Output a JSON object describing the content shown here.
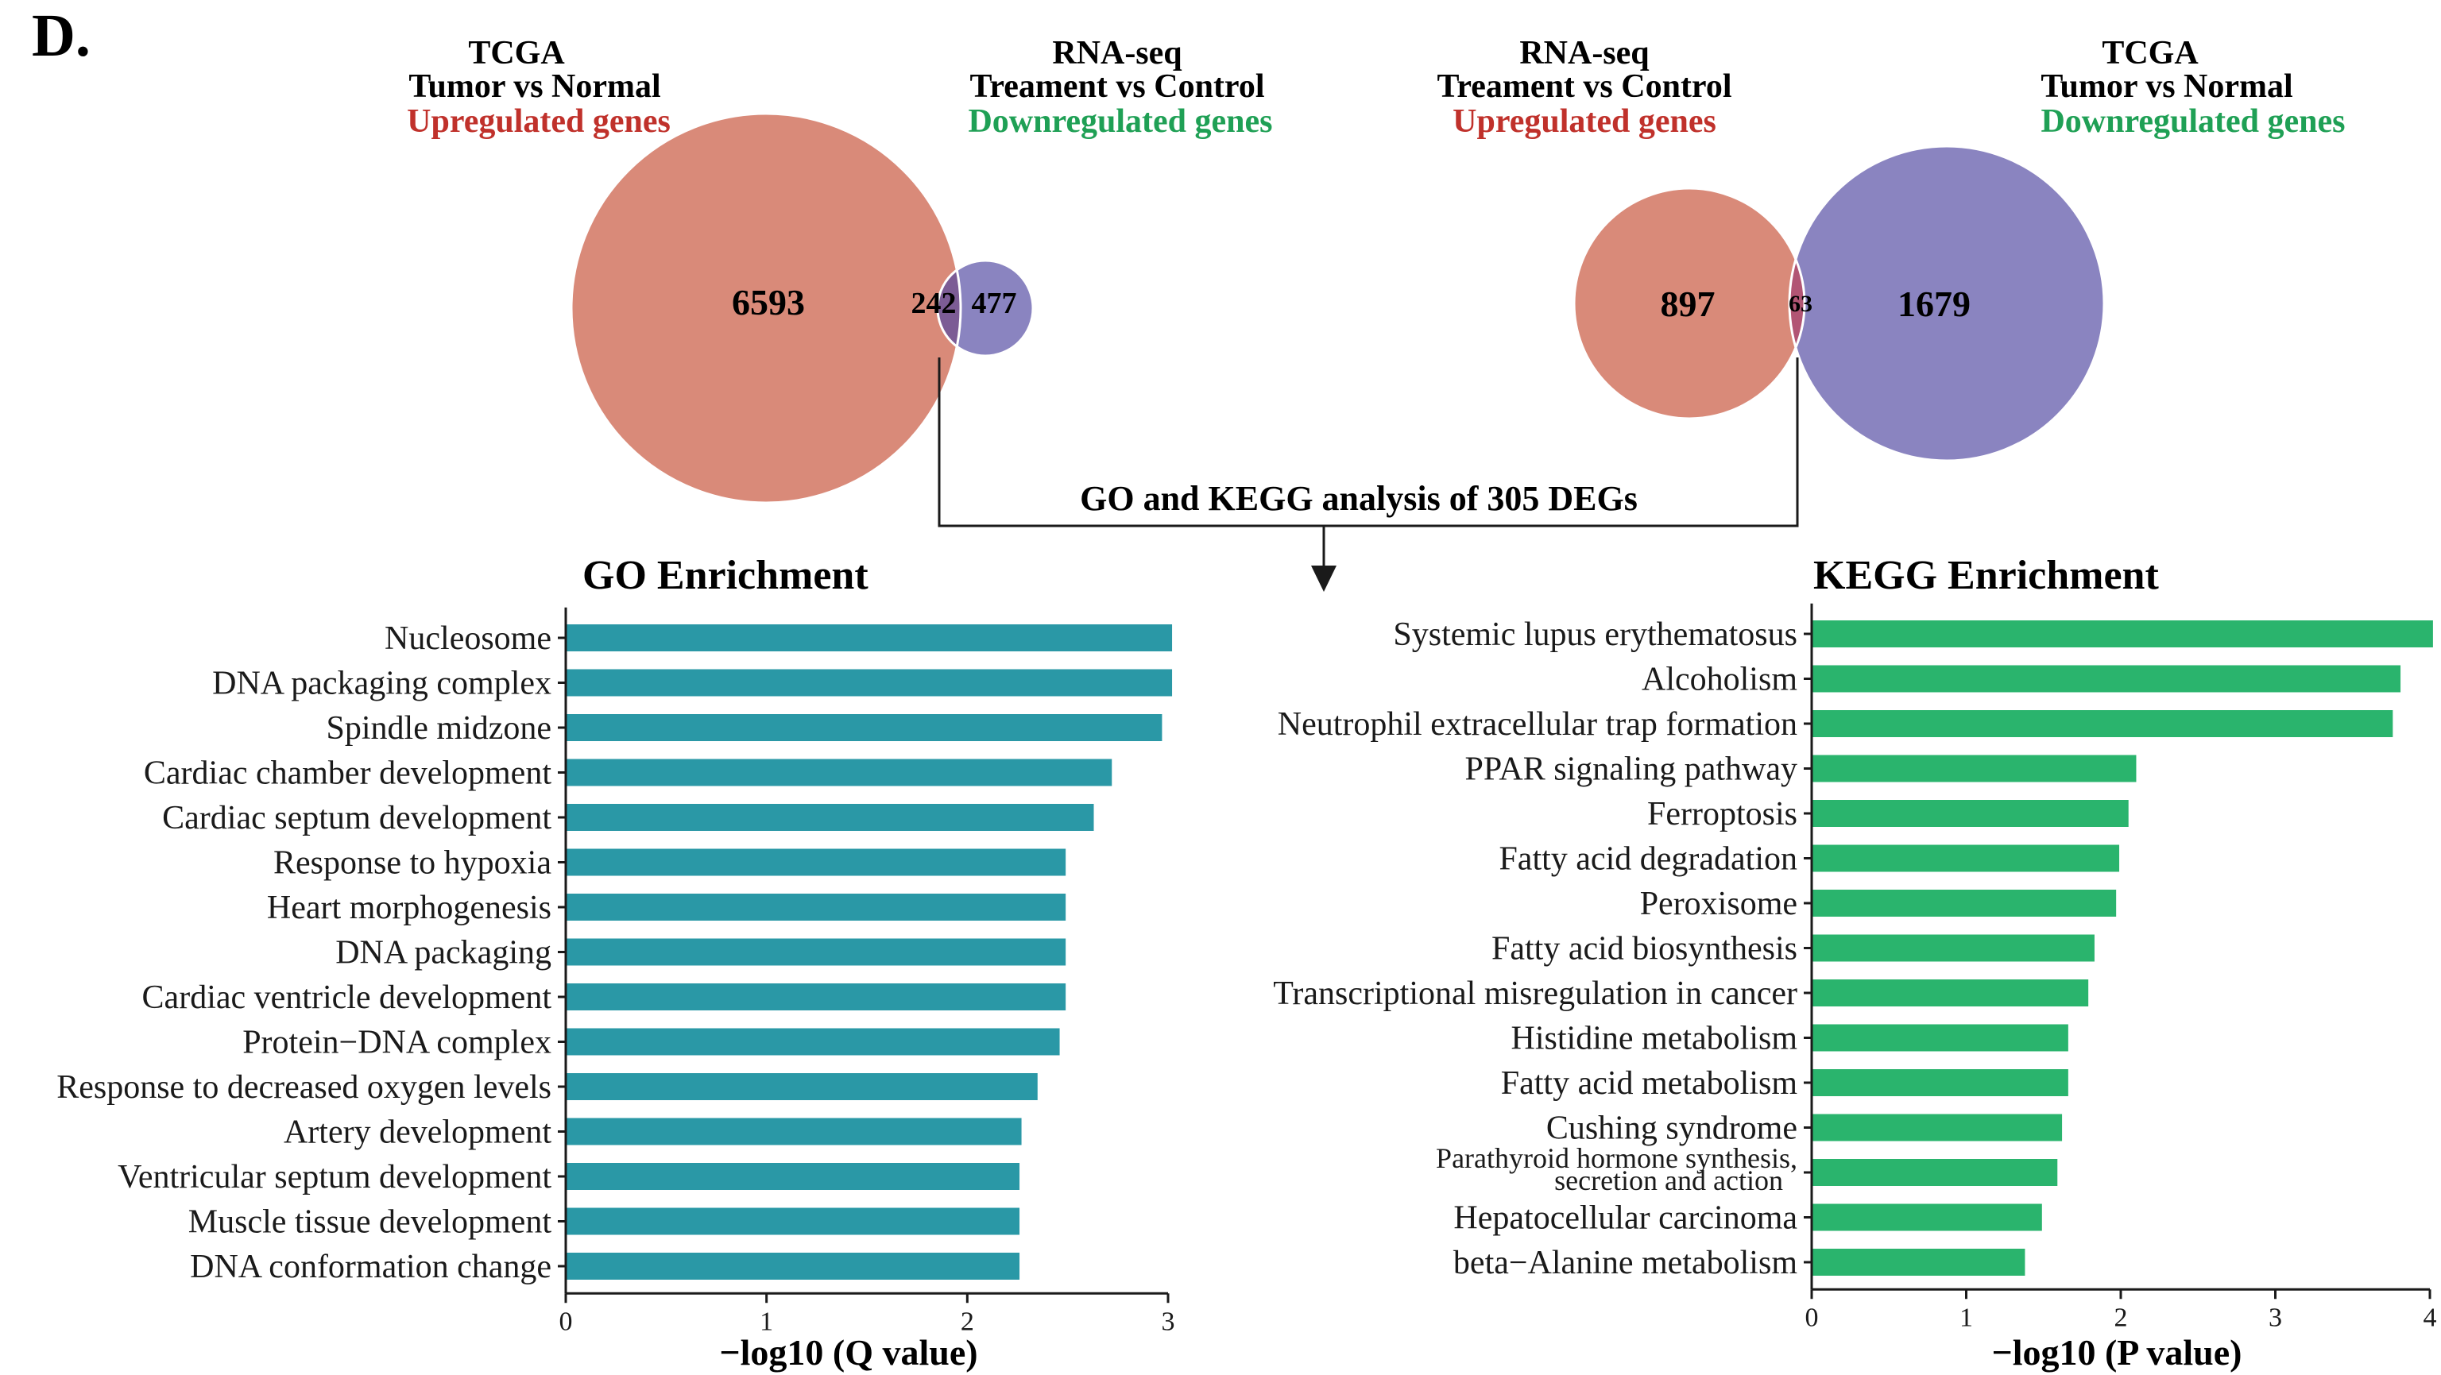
{
  "panel_label": "D.",
  "colors": {
    "up_red": "#c0312b",
    "down_green": "#1fa055",
    "venn_red": "#d98a79",
    "venn_purple": "#8a84c0",
    "venn_overlap_left": "#7c5c95",
    "venn_overlap_right": "#b25574",
    "go_bar": "#2a98a6",
    "kegg_bar": "#2ab46d",
    "text": "#1a1a1a"
  },
  "venn_left": {
    "set_a": {
      "line1": "TCGA",
      "line2": "Tumor vs Normal",
      "line3": "Upregulated genes"
    },
    "set_b": {
      "line1": "RNA-seq",
      "line2": "Treament vs Control",
      "line3": "Downregulated genes"
    },
    "only_a": "6593",
    "overlap": "242",
    "only_b": "477"
  },
  "venn_right": {
    "set_a": {
      "line1": "RNA-seq",
      "line2": "Treament vs Control",
      "line3": "Upregulated genes"
    },
    "set_b": {
      "line1": "TCGA",
      "line2": "Tumor vs Normal",
      "line3": "Downregulated genes"
    },
    "only_a": "897",
    "overlap": "63",
    "only_b": "1679"
  },
  "connector_label": "GO and KEGG analysis of 305 DEGs",
  "chart_data": [
    {
      "type": "bar",
      "orientation": "horizontal",
      "title": "GO Enrichment",
      "xlabel": "−log10 (Q value)",
      "ylabel": "",
      "xlim": [
        0,
        3
      ],
      "xticks": [
        "0",
        "1",
        "2",
        "3"
      ],
      "categories": [
        "Nucleosome",
        "DNA packaging complex",
        "Spindle midzone",
        "Cardiac chamber development",
        "Cardiac septum development",
        "Response to hypoxia",
        "Heart morphogenesis",
        "DNA packaging",
        "Cardiac ventricle development",
        "Protein−DNA complex",
        "Response to decreased oxygen levels",
        "Artery development",
        "Ventricular septum development",
        "Muscle tissue development",
        "DNA conformation change"
      ],
      "values": [
        3.02,
        3.02,
        2.97,
        2.72,
        2.63,
        2.49,
        2.49,
        2.49,
        2.49,
        2.46,
        2.35,
        2.27,
        2.26,
        2.26,
        2.26
      ]
    },
    {
      "type": "bar",
      "orientation": "horizontal",
      "title": "KEGG Enrichment",
      "xlabel": "−log10 (P value)",
      "ylabel": "",
      "xlim": [
        0,
        4
      ],
      "xticks": [
        "0",
        "1",
        "2",
        "3",
        "4"
      ],
      "categories": [
        "Systemic lupus erythematosus",
        "Alcoholism",
        "Neutrophil extracellular trap formation",
        "PPAR signaling pathway",
        "Ferroptosis",
        "Fatty acid degradation",
        "Peroxisome",
        "Fatty acid biosynthesis",
        "Transcriptional misregulation in cancer",
        "Histidine metabolism",
        "Fatty acid metabolism",
        "Cushing syndrome",
        "Parathyroid hormone synthesis, secretion and action",
        "Hepatocellular carcinoma",
        "beta−Alanine metabolism"
      ],
      "values": [
        4.02,
        3.81,
        3.76,
        2.1,
        2.05,
        1.99,
        1.97,
        1.83,
        1.79,
        1.66,
        1.66,
        1.62,
        1.59,
        1.49,
        1.38
      ]
    }
  ]
}
